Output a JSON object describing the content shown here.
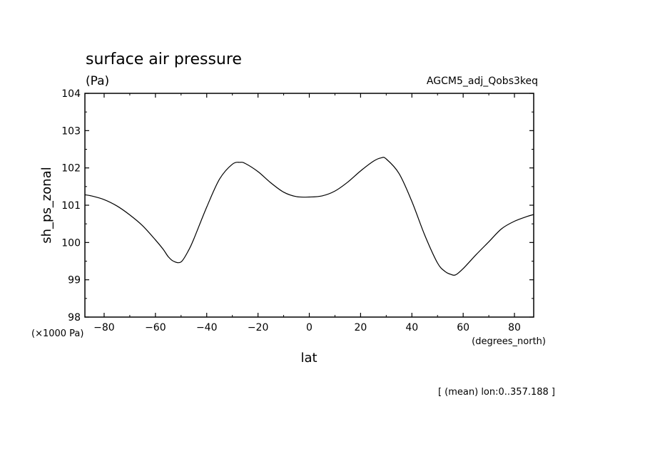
{
  "chart_data": {
    "type": "line",
    "title": "surface air pressure",
    "units": "(Pa)",
    "run_name": "AGCM5_adj_Qobs3keq",
    "ylabel": "sh_ps_zonal",
    "xlabel": "lat",
    "x_units": "(degrees_north)",
    "y_scale_note": "(×1000 Pa)",
    "footnote": "[ (mean) lon:0..357.188 ]",
    "xlim": [
      -87.5,
      87.5
    ],
    "ylim": [
      98,
      104
    ],
    "x_ticks": [
      -80,
      -60,
      -40,
      -20,
      0,
      20,
      40,
      60,
      80
    ],
    "y_ticks": [
      98,
      99,
      100,
      101,
      102,
      103,
      104
    ],
    "series": [
      {
        "name": "sh_ps_zonal",
        "x": [
          -87.5,
          -85,
          -80,
          -75,
          -70,
          -65,
          -60,
          -57,
          -55,
          -53,
          -50,
          -47,
          -45,
          -40,
          -35,
          -30,
          -27,
          -25,
          -20,
          -15,
          -10,
          -5,
          0,
          5,
          10,
          15,
          20,
          25,
          28,
          30,
          35,
          40,
          45,
          50,
          53,
          55,
          57,
          60,
          65,
          70,
          75,
          80,
          85,
          87.5
        ],
        "values": [
          101.28,
          101.25,
          101.15,
          100.98,
          100.74,
          100.45,
          100.07,
          99.82,
          99.62,
          99.5,
          99.48,
          99.8,
          100.1,
          100.95,
          101.7,
          102.1,
          102.15,
          102.12,
          101.9,
          101.6,
          101.35,
          101.23,
          101.22,
          101.25,
          101.38,
          101.62,
          101.92,
          102.18,
          102.27,
          102.24,
          101.85,
          101.1,
          100.2,
          99.45,
          99.22,
          99.15,
          99.13,
          99.3,
          99.67,
          100.02,
          100.37,
          100.57,
          100.7,
          100.75
        ]
      }
    ]
  }
}
